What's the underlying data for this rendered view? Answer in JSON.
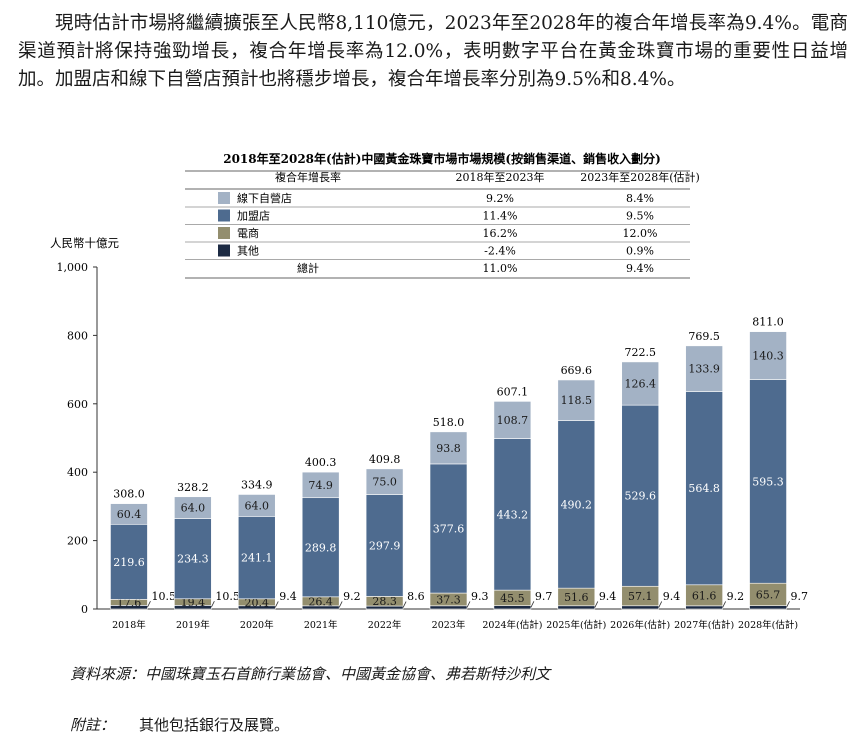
{
  "intro_paragraph": "現時估計市場將繼續擴張至人民幣8,110億元，2023年至2028年的複合年增長率為9.4%。電商渠道預計將保持強勁增長，複合年增長率為12.0%，表明數字平台在黃金珠寶市場的重要性日益增加。加盟店和線下自營店預計也將穩步增長，複合年增長率分別為9.5%和8.4%。",
  "footer": {
    "source_label": "資料來源：",
    "source_text": "中國珠寶玉石首飾行業協會、中國黃金協會、弗若斯特沙利文",
    "note_label": "附註：",
    "note_text": "其他包括銀行及展覽。"
  },
  "chart_data": {
    "type": "bar",
    "stacked": true,
    "title": "2018年至2028年(估計)中國黃金珠寶市場市場規模(按銷售渠道、銷售收入劃分)",
    "ylabel": "人民幣十億元",
    "xlabel": "",
    "ylim": [
      0,
      1000
    ],
    "yticks": [
      0,
      200,
      400,
      600,
      800,
      1000
    ],
    "ytick_labels": [
      "0",
      "200",
      "400",
      "600",
      "800",
      "1,000"
    ],
    "grid": false,
    "categories": [
      "2018年",
      "2019年",
      "2020年",
      "2021年",
      "2022年",
      "2023年",
      "2024年(估計)",
      "2025年(估計)",
      "2026年(估計)",
      "2027年(估計)",
      "2028年(估計)"
    ],
    "series": [
      {
        "name": "其他",
        "color": "#1c2a43",
        "values": [
          10.5,
          10.5,
          9.4,
          9.2,
          8.6,
          9.3,
          9.7,
          9.4,
          9.4,
          9.2,
          9.7
        ],
        "labels": [
          "10.5",
          "10.5",
          "9.4",
          "9.2",
          "8.6",
          "9.3",
          "9.7",
          "9.4",
          "9.4",
          "9.2",
          "9.7"
        ]
      },
      {
        "name": "電商",
        "color": "#938e6e",
        "values": [
          17.6,
          19.4,
          20.4,
          26.4,
          28.3,
          37.3,
          45.5,
          51.6,
          57.1,
          61.6,
          65.7
        ],
        "labels": [
          "17.6",
          "19.4",
          "20.4",
          "26.4",
          "28.3",
          "37.3",
          "45.5",
          "51.6",
          "57.1",
          "61.6",
          "65.7"
        ]
      },
      {
        "name": "加盟店",
        "color": "#4e6b8f",
        "values": [
          219.6,
          234.3,
          241.1,
          289.8,
          297.9,
          377.6,
          443.2,
          490.2,
          529.6,
          564.8,
          595.3
        ],
        "labels": [
          "219.6",
          "234.3",
          "241.1",
          "289.8",
          "297.9",
          "377.6",
          "443.2",
          "490.2",
          "529.6",
          "564.8",
          "595.3"
        ]
      },
      {
        "name": "線下自營店",
        "color": "#a3b2c5",
        "values": [
          60.4,
          64.0,
          64.0,
          74.9,
          75.0,
          93.8,
          108.7,
          118.5,
          126.4,
          133.9,
          140.3
        ],
        "labels": [
          "60.4",
          "64.0",
          "64.0",
          "74.9",
          "75.0",
          "93.8",
          "108.7",
          "118.5",
          "126.4",
          "133.9",
          "140.3"
        ]
      }
    ],
    "totals": [
      308.0,
      328.2,
      334.9,
      400.3,
      409.8,
      518.0,
      607.1,
      669.6,
      722.5,
      769.5,
      811.0
    ],
    "total_labels": [
      "308.0",
      "328.2",
      "334.9",
      "400.3",
      "409.8",
      "518.0",
      "607.1",
      "669.6",
      "722.5",
      "769.5",
      "811.0"
    ],
    "cagr_table": {
      "headers": [
        "複合年增長率",
        "2018年至2023年",
        "2023年至2028年(估計)"
      ],
      "rows": [
        {
          "name": "線下自營店",
          "color": "#a3b2c5",
          "c1": "9.2%",
          "c2": "8.4%"
        },
        {
          "name": "加盟店",
          "color": "#4e6b8f",
          "c1": "11.4%",
          "c2": "9.5%"
        },
        {
          "name": "電商",
          "color": "#938e6e",
          "c1": "16.2%",
          "c2": "12.0%"
        },
        {
          "name": "其他",
          "color": "#1c2a43",
          "c1": "-2.4%",
          "c2": "0.9%"
        }
      ],
      "total_row": {
        "name": "總計",
        "c1": "11.0%",
        "c2": "9.4%"
      }
    }
  }
}
